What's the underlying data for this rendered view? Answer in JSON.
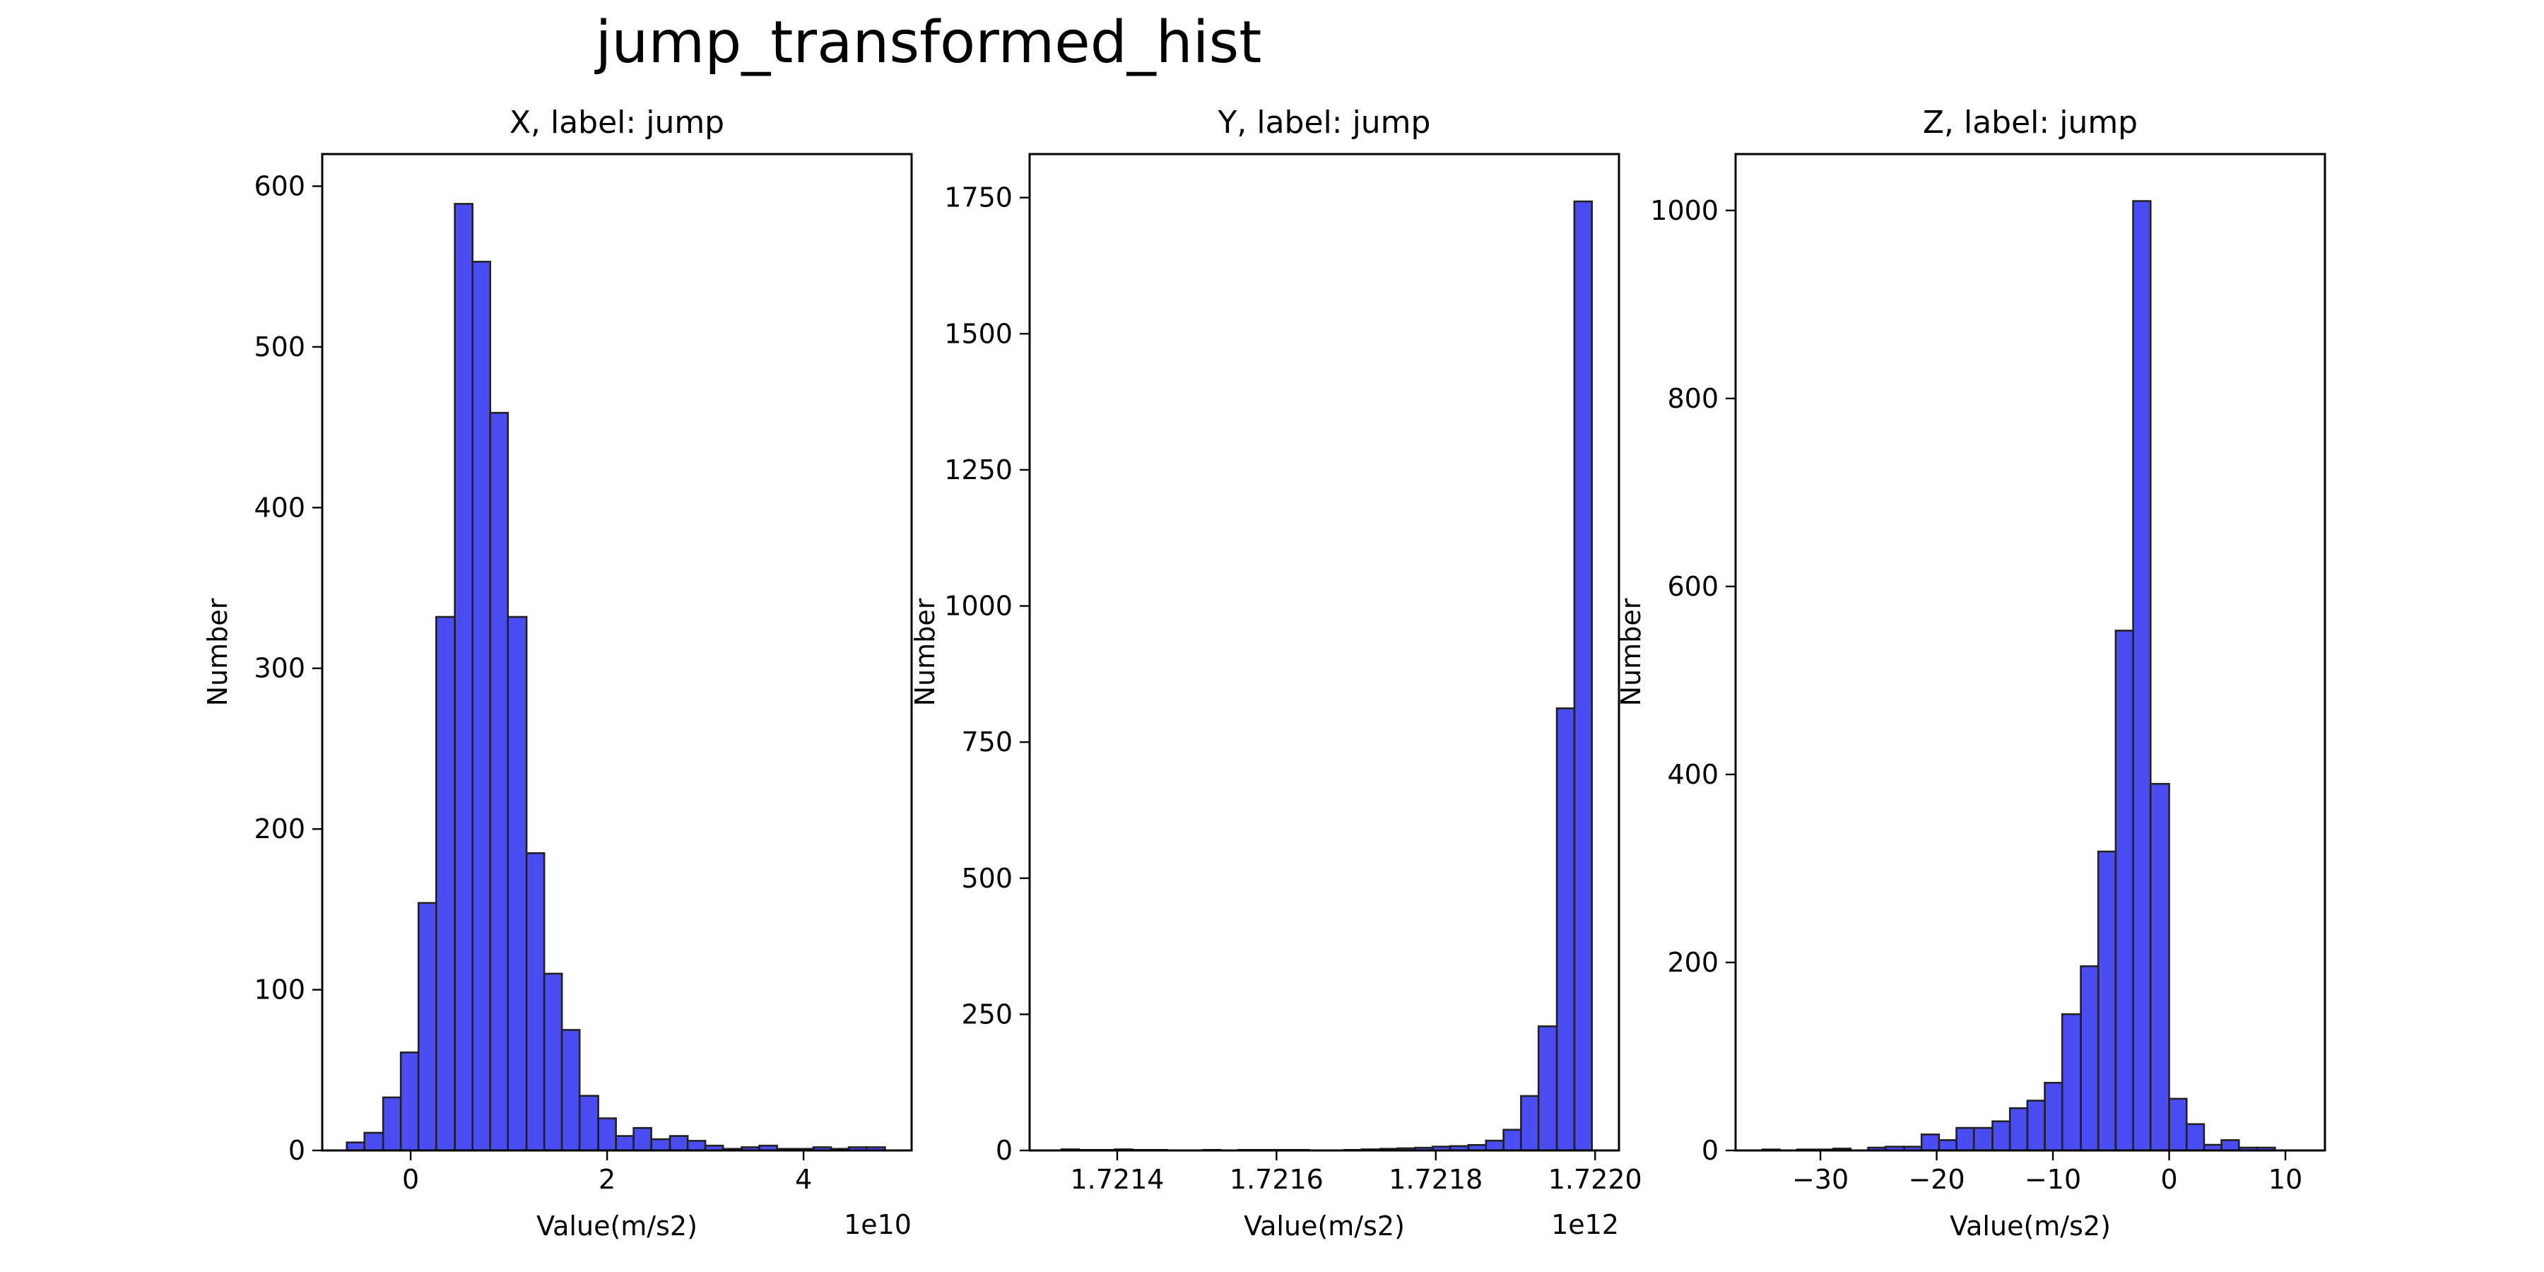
{
  "figure": {
    "suptitle": "jump_transformed_hist"
  },
  "style": {
    "bar_fill": "#0000ee",
    "bar_fill_opacity": 0.7,
    "bar_edge": "#222222",
    "axes_color": "#000000",
    "background": "#ffffff"
  },
  "chart_data": [
    {
      "type": "bar",
      "subtype": "histogram",
      "title": "X, label: jump",
      "xlabel": "Value(m/s2)",
      "ylabel": "Number",
      "offset_text": "1e10",
      "xlim": [
        -0.9,
        5.1
      ],
      "ylim": [
        0,
        620
      ],
      "xticks": [
        0,
        2,
        4
      ],
      "xtick_labels": [
        "0",
        "2",
        "4"
      ],
      "yticks": [
        0,
        100,
        200,
        300,
        400,
        500,
        600
      ],
      "ytick_labels": [
        "0",
        "100",
        "200",
        "300",
        "400",
        "500",
        "600"
      ],
      "bin_edges": [
        -0.65,
        -0.47,
        -0.28,
        -0.1,
        0.08,
        0.26,
        0.45,
        0.63,
        0.81,
        0.99,
        1.18,
        1.36,
        1.54,
        1.72,
        1.91,
        2.09,
        2.27,
        2.45,
        2.64,
        2.82,
        3.0,
        3.18,
        3.37,
        3.55,
        3.73,
        3.91,
        4.1,
        4.28,
        4.46,
        4.64,
        4.83
      ],
      "values": [
        5,
        11,
        33,
        61,
        154,
        332,
        589,
        553,
        459,
        332,
        185,
        110,
        75,
        34,
        20,
        9,
        14,
        7,
        9,
        6,
        3,
        1,
        2,
        3,
        1,
        1,
        2,
        1,
        2,
        2
      ],
      "grid": false,
      "legend": "none"
    },
    {
      "type": "bar",
      "subtype": "histogram",
      "title": "Y, label: jump",
      "xlabel": "Value(m/s2)",
      "ylabel": "Number",
      "offset_text": "1e12",
      "xlim": [
        1.72129,
        1.72203
      ],
      "ylim": [
        0,
        1830
      ],
      "xticks": [
        1.7214,
        1.7216,
        1.7218,
        1.722
      ],
      "xtick_labels": [
        "1.7214",
        "1.7216",
        "1.7218",
        "1.7220"
      ],
      "yticks": [
        0,
        250,
        500,
        750,
        1000,
        1250,
        1500,
        1750
      ],
      "ytick_labels": [
        "0",
        "250",
        "500",
        "750",
        "1000",
        "1250",
        "1500",
        "1750"
      ],
      "bin_edges": [
        1.72133,
        1.721352,
        1.721374,
        1.721397,
        1.721419,
        1.721441,
        1.721463,
        1.721485,
        1.721508,
        1.72153,
        1.721552,
        1.721574,
        1.721596,
        1.721619,
        1.721641,
        1.721663,
        1.721685,
        1.721707,
        1.72173,
        1.721752,
        1.721774,
        1.721796,
        1.721818,
        1.721841,
        1.721863,
        1.721885,
        1.721907,
        1.721929,
        1.721952,
        1.721974,
        1.721996
      ],
      "values": [
        2,
        1,
        1,
        2,
        1,
        1,
        0,
        0,
        1,
        0,
        1,
        1,
        1,
        1,
        0,
        0,
        1,
        2,
        3,
        4,
        5,
        7,
        8,
        10,
        18,
        38,
        100,
        228,
        812,
        1743
      ],
      "grid": false,
      "legend": "none"
    },
    {
      "type": "bar",
      "subtype": "histogram",
      "title": "Z, label: jump",
      "xlabel": "Value(m/s2)",
      "ylabel": "Number",
      "offset_text": "",
      "xlim": [
        -37.3,
        13.4
      ],
      "ylim": [
        0,
        1060
      ],
      "xticks": [
        -30,
        -20,
        -10,
        0,
        10
      ],
      "xtick_labels": [
        "−30",
        "−20",
        "−10",
        "0",
        "10"
      ],
      "yticks": [
        0,
        200,
        400,
        600,
        800,
        1000
      ],
      "ytick_labels": [
        "0",
        "200",
        "400",
        "600",
        "800",
        "1000"
      ],
      "bin_edges": [
        -35.0,
        -33.5,
        -32.0,
        -30.4,
        -28.9,
        -27.4,
        -25.9,
        -24.4,
        -22.8,
        -21.3,
        -19.8,
        -18.3,
        -16.8,
        -15.2,
        -13.7,
        -12.2,
        -10.7,
        -9.2,
        -7.6,
        -6.1,
        -4.6,
        -3.1,
        -1.6,
        0.0,
        1.5,
        3.0,
        4.5,
        6.0,
        7.6,
        9.1,
        10.6
      ],
      "values": [
        1,
        0,
        1,
        1,
        2,
        0,
        3,
        4,
        4,
        17,
        11,
        24,
        24,
        31,
        45,
        53,
        72,
        145,
        196,
        318,
        553,
        1010,
        390,
        55,
        28,
        6,
        11,
        3,
        3,
        0
      ],
      "grid": false,
      "legend": "none"
    }
  ]
}
